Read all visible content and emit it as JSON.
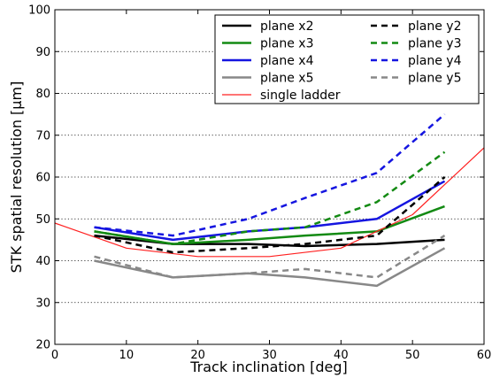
{
  "chart_data": {
    "type": "line",
    "title": "",
    "xlabel": "Track inclination [deg]",
    "ylabel": "STK spatial resolution [μm]",
    "xlim": [
      0,
      60
    ],
    "ylim": [
      20,
      100
    ],
    "xticks": [
      0,
      10,
      20,
      30,
      40,
      50,
      60
    ],
    "yticks": [
      20,
      30,
      40,
      50,
      60,
      70,
      80,
      90,
      100
    ],
    "grid": "horizontal dotted",
    "legend_placement": "top-right",
    "series": [
      {
        "name": "plane x2",
        "color": "#000000",
        "style": "solid",
        "width": 2.5,
        "x": [
          5.5,
          16.5,
          27,
          35,
          45,
          54.5
        ],
        "y": [
          46,
          44,
          44,
          43.5,
          44,
          45
        ]
      },
      {
        "name": "plane x3",
        "color": "#138a13",
        "style": "solid",
        "width": 2.5,
        "x": [
          5.5,
          16.5,
          27,
          35,
          45,
          54.5
        ],
        "y": [
          47,
          44,
          45,
          46,
          47,
          53
        ]
      },
      {
        "name": "plane x4",
        "color": "#1515e0",
        "style": "solid",
        "width": 2.5,
        "x": [
          5.5,
          16.5,
          27,
          35,
          45,
          54.5
        ],
        "y": [
          48,
          45,
          47,
          48,
          50,
          59
        ]
      },
      {
        "name": "plane x5",
        "color": "#888888",
        "style": "solid",
        "width": 2.5,
        "x": [
          5.5,
          16.5,
          27,
          35,
          45,
          54.5
        ],
        "y": [
          40,
          36,
          37,
          36,
          34,
          43
        ]
      },
      {
        "name": "single ladder",
        "color": "#ff2020",
        "style": "solid",
        "width": 1.2,
        "x": [
          0,
          10,
          20,
          30,
          40,
          50,
          60
        ],
        "y": [
          49,
          43,
          41,
          41,
          43,
          51,
          67
        ]
      },
      {
        "name": "plane y2",
        "color": "#000000",
        "style": "dashed",
        "width": 2.5,
        "x": [
          5.5,
          16.5,
          27,
          35,
          45,
          54.5
        ],
        "y": [
          46,
          42,
          43,
          44,
          46,
          60
        ]
      },
      {
        "name": "plane y3",
        "color": "#138a13",
        "style": "dashed",
        "width": 2.5,
        "x": [
          5.5,
          16.5,
          27,
          35,
          45,
          54.5
        ],
        "y": [
          47,
          44,
          47,
          48,
          54,
          66
        ]
      },
      {
        "name": "plane y4",
        "color": "#1515e0",
        "style": "dashed",
        "width": 2.5,
        "x": [
          5.5,
          16.5,
          27,
          35,
          45,
          54.5
        ],
        "y": [
          48,
          46,
          50,
          55,
          61,
          75
        ]
      },
      {
        "name": "plane y5",
        "color": "#888888",
        "style": "dashed",
        "width": 2.5,
        "x": [
          5.5,
          16.5,
          27,
          35,
          45,
          54.5
        ],
        "y": [
          41,
          36,
          37,
          38,
          36,
          46
        ]
      }
    ]
  }
}
